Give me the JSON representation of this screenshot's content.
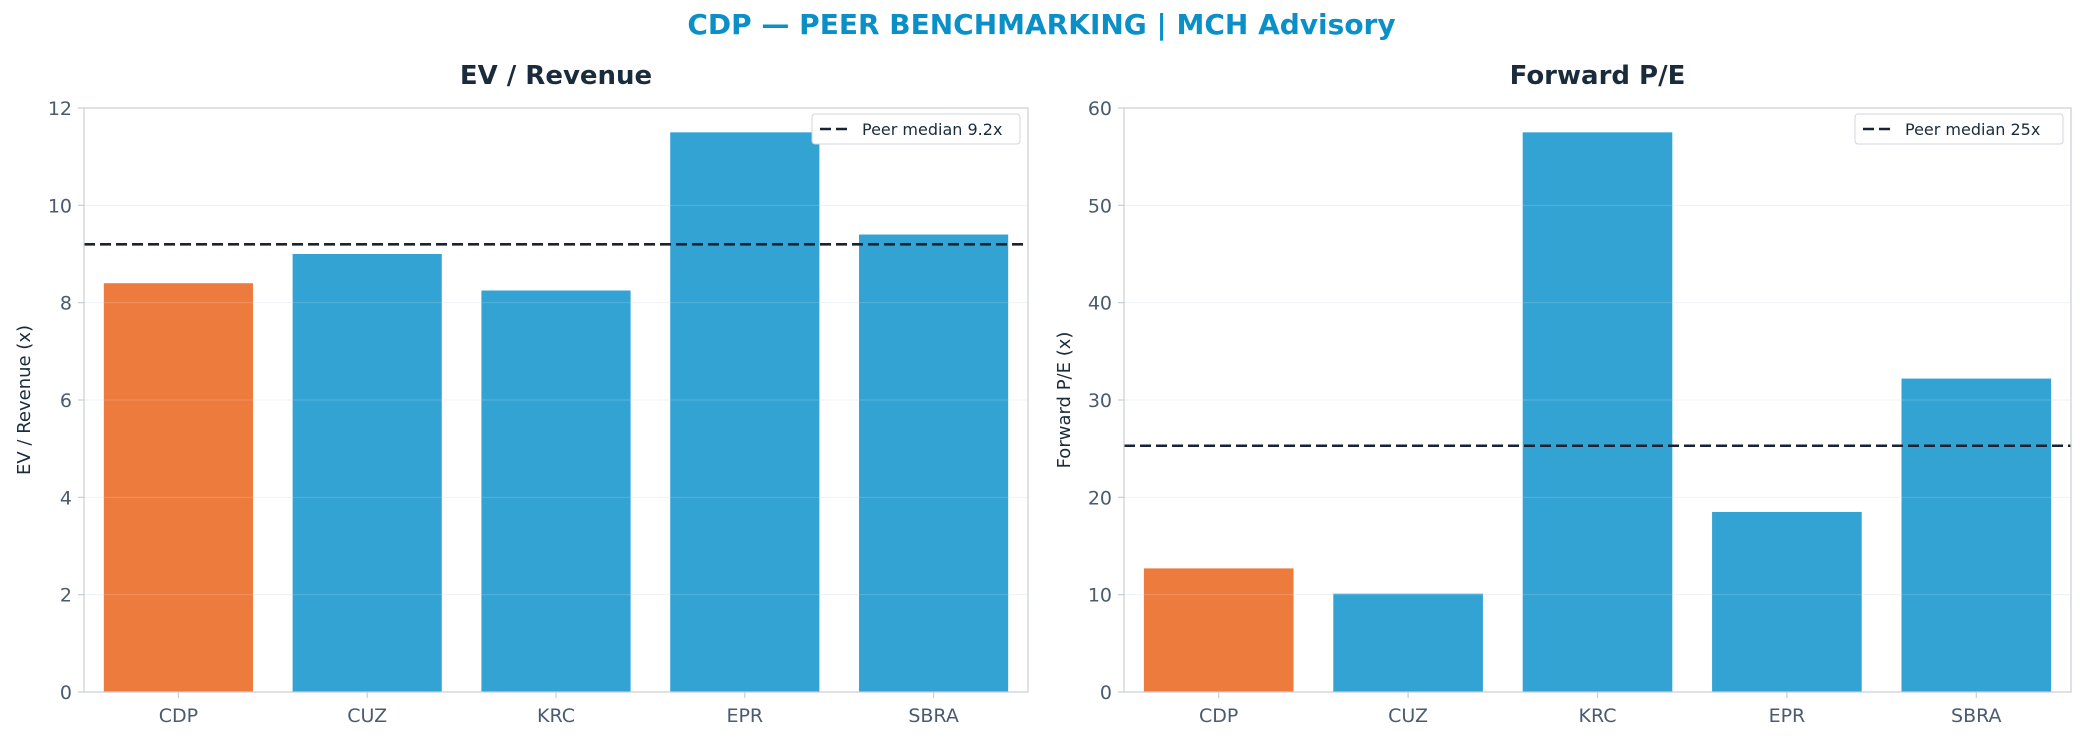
{
  "suptitle": "CDP — PEER BENCHMARKING | MCH Advisory",
  "colors": {
    "title": "#0a8fc7",
    "highlight": "#ee7b3e",
    "peer": "#33a3d4",
    "median_line": "#1a2333",
    "axis_text": "#4a5b70",
    "heading_text": "#1a2b3c",
    "spine": "#c8ced6",
    "grid": "#edf0f3"
  },
  "chart_data": [
    {
      "type": "bar",
      "title": "EV / Revenue",
      "xlabel": "",
      "ylabel": "EV / Revenue (x)",
      "categories": [
        "CDP",
        "CUZ",
        "KRC",
        "EPR",
        "SBRA"
      ],
      "values": [
        8.4,
        9.0,
        8.25,
        11.5,
        9.4
      ],
      "highlight_category": "CDP",
      "ylim": [
        0,
        12
      ],
      "yticks": [
        0,
        2,
        4,
        6,
        8,
        10,
        12
      ],
      "grid": true,
      "median": 9.2,
      "legend": {
        "label": "Peer median 9.2x",
        "position": "top-right"
      }
    },
    {
      "type": "bar",
      "title": "Forward P/E",
      "xlabel": "",
      "ylabel": "Forward P/E (x)",
      "categories": [
        "CDP",
        "CUZ",
        "KRC",
        "EPR",
        "SBRA"
      ],
      "values": [
        12.7,
        10.1,
        57.5,
        18.5,
        32.2
      ],
      "highlight_category": "CDP",
      "ylim": [
        0,
        60
      ],
      "yticks": [
        0,
        10,
        20,
        30,
        40,
        50,
        60
      ],
      "grid": true,
      "median": 25.3,
      "legend": {
        "label": "Peer median 25x",
        "position": "top-right"
      }
    }
  ]
}
